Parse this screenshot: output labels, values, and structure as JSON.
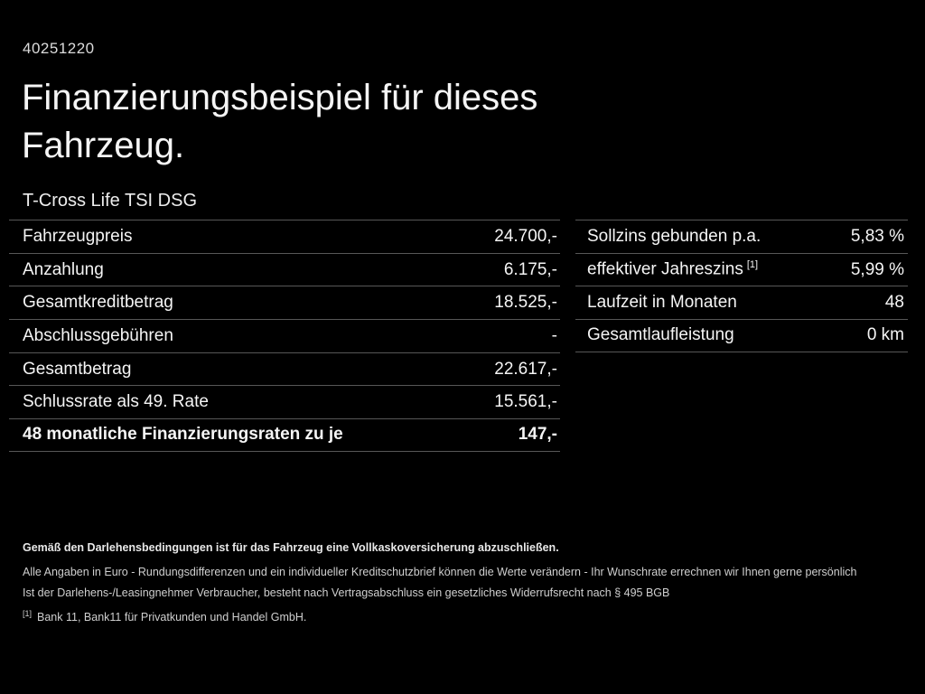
{
  "colors": {
    "background": "#000000",
    "text": "#f5f5f5",
    "separator": "#575757",
    "muted_text": "#cfcfcf"
  },
  "header": {
    "document_number": "40251220",
    "title_line1": "Finanzierungsbeispiel für dieses",
    "title_line2": "Fahrzeug.",
    "vehicle_model": "T-Cross Life TSI DSG"
  },
  "left_table": {
    "rows": [
      {
        "label": "Fahrzeugpreis",
        "value": "24.700,-"
      },
      {
        "label": "Anzahlung",
        "value": "6.175,-"
      },
      {
        "label": "Gesamtkreditbetrag",
        "value": "18.525,-"
      },
      {
        "label": "Abschlussgebühren",
        "value": "-"
      },
      {
        "label": "Gesamtbetrag",
        "value": "22.617,-"
      },
      {
        "label": "Schlussrate als 49. Rate",
        "value": "15.561,-"
      },
      {
        "label": "48 monatliche Finanzierungsraten zu je",
        "value": "147,-",
        "bold": true
      }
    ]
  },
  "right_table": {
    "rows": [
      {
        "label": "Sollzins gebunden p.a.",
        "value": "5,83 %"
      },
      {
        "label": "effektiver Jahreszins",
        "sup": "[1]",
        "value": "5,99 %"
      },
      {
        "label": "Laufzeit in Monaten",
        "value": "48"
      },
      {
        "label": "Gesamtlaufleistung",
        "value": "0 km"
      }
    ]
  },
  "footer": {
    "line1": "Gemäß den Darlehensbedingungen ist für das Fahrzeug eine Vollkaskoversicherung abzuschließen.",
    "line2": "Alle Angaben in Euro - Rundungsdifferenzen und ein individueller Kreditschutzbrief können die Werte verändern - Ihr Wunschrate errechnen wir Ihnen gerne persönlich",
    "line3": "Ist der Darlehens-/Leasingnehmer Verbraucher, besteht nach Vertragsabschluss ein gesetzliches Widerrufsrecht nach § 495 BGB",
    "footnote_marker": "[1]",
    "footnote_text": "Bank 11, Bank11 für Privatkunden und Handel GmbH."
  }
}
